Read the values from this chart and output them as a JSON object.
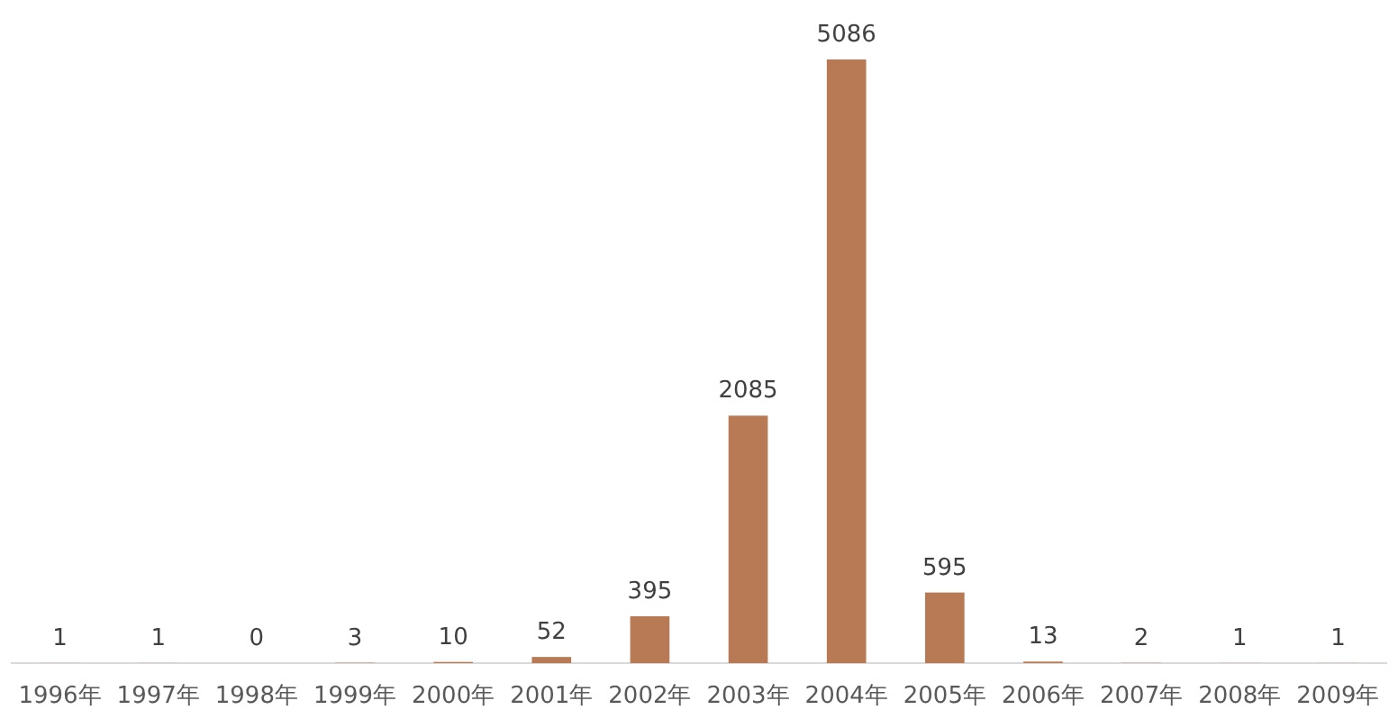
{
  "chart_data": {
    "type": "bar",
    "categories": [
      "1996年",
      "1997年",
      "1998年",
      "1999年",
      "2000年",
      "2001年",
      "2002年",
      "2003年",
      "2004年",
      "2005年",
      "2006年",
      "2007年",
      "2008年",
      "2009年"
    ],
    "values": [
      1,
      1,
      0,
      3,
      10,
      52,
      395,
      2085,
      5086,
      595,
      13,
      2,
      1,
      1
    ],
    "color": "#b87a55",
    "data_labels": true
  }
}
